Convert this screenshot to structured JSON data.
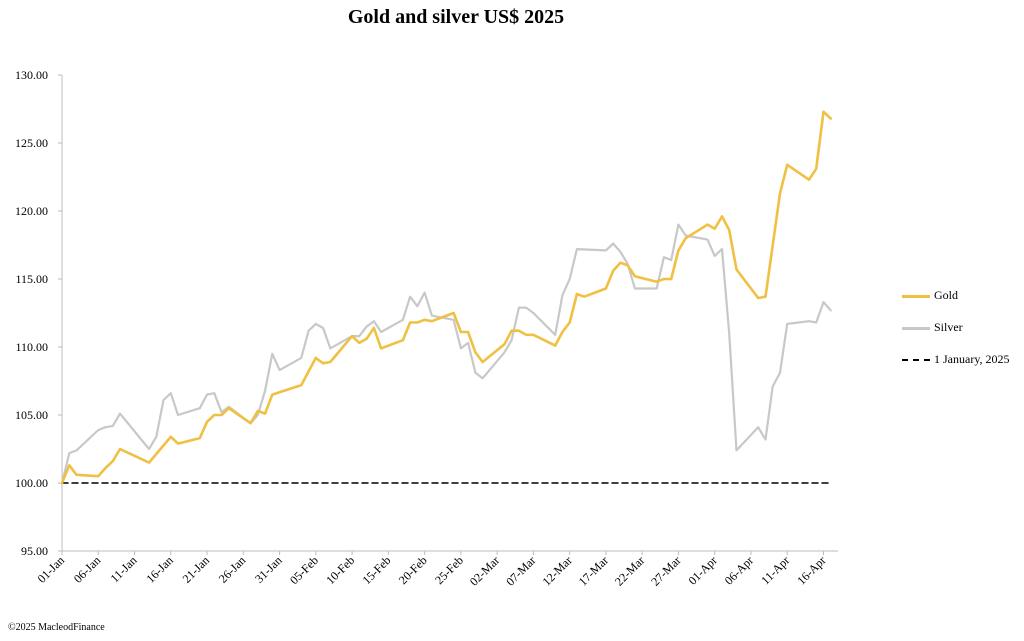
{
  "title": "Gold and silver  US$ 2025",
  "copyright": "©2025 MacleodFinance",
  "colors": {
    "gold": "#f0c043",
    "silver": "#c8c8c8",
    "baseline": "#000000"
  },
  "chart_data": {
    "type": "line",
    "title": "Gold and silver  US$ 2025",
    "xlabel": "",
    "ylabel": "",
    "ylim": [
      95,
      130
    ],
    "yticks": [
      "95.00",
      "100.00",
      "105.00",
      "110.00",
      "115.00",
      "120.00",
      "125.00",
      "130.00"
    ],
    "x_ticks": [
      "01-Jan",
      "06-Jan",
      "11-Jan",
      "16-Jan",
      "21-Jan",
      "26-Jan",
      "31-Jan",
      "05-Feb",
      "10-Feb",
      "15-Feb",
      "20-Feb",
      "25-Feb",
      "02-Mar",
      "07-Mar",
      "12-Mar",
      "17-Mar",
      "22-Mar",
      "27-Mar",
      "01-Apr",
      "06-Apr",
      "11-Apr",
      "16-Apr"
    ],
    "x_range_days": [
      0,
      107
    ],
    "grid": false,
    "legend_position": "right",
    "series": [
      {
        "name": "Gold",
        "color": "#f0c043",
        "points": [
          [
            0,
            100.0
          ],
          [
            1,
            101.3
          ],
          [
            2,
            100.6
          ],
          [
            5,
            100.5
          ],
          [
            6,
            101.1
          ],
          [
            7,
            101.6
          ],
          [
            8,
            102.5
          ],
          [
            12,
            101.5
          ],
          [
            15,
            103.4
          ],
          [
            16,
            102.9
          ],
          [
            19,
            103.3
          ],
          [
            20,
            104.5
          ],
          [
            21,
            105.0
          ],
          [
            22,
            105.0
          ],
          [
            23,
            105.5
          ],
          [
            26,
            104.4
          ],
          [
            27,
            105.3
          ],
          [
            28,
            105.1
          ],
          [
            29,
            106.5
          ],
          [
            33,
            107.2
          ],
          [
            35,
            109.2
          ],
          [
            36,
            108.8
          ],
          [
            37,
            108.9
          ],
          [
            40,
            110.8
          ],
          [
            41,
            110.3
          ],
          [
            42,
            110.6
          ],
          [
            43,
            111.4
          ],
          [
            44,
            109.9
          ],
          [
            47,
            110.5
          ],
          [
            48,
            111.8
          ],
          [
            49,
            111.8
          ],
          [
            50,
            112.0
          ],
          [
            51,
            111.9
          ],
          [
            54,
            112.5
          ],
          [
            55,
            111.1
          ],
          [
            56,
            111.1
          ],
          [
            57,
            109.6
          ],
          [
            58,
            108.9
          ],
          [
            61,
            110.2
          ],
          [
            62,
            111.2
          ],
          [
            63,
            111.2
          ],
          [
            64,
            110.9
          ],
          [
            65,
            110.9
          ],
          [
            68,
            110.1
          ],
          [
            69,
            111.1
          ],
          [
            70,
            111.8
          ],
          [
            71,
            113.9
          ],
          [
            72,
            113.7
          ],
          [
            75,
            114.3
          ],
          [
            76,
            115.6
          ],
          [
            77,
            116.2
          ],
          [
            78,
            116.0
          ],
          [
            79,
            115.2
          ],
          [
            82,
            114.8
          ],
          [
            83,
            115.0
          ],
          [
            84,
            115.0
          ],
          [
            85,
            117.1
          ],
          [
            86,
            118.0
          ],
          [
            89,
            119.0
          ],
          [
            90,
            118.7
          ],
          [
            91,
            119.6
          ],
          [
            92,
            118.6
          ],
          [
            93,
            115.7
          ],
          [
            96,
            113.6
          ],
          [
            97,
            113.7
          ],
          [
            99,
            121.3
          ],
          [
            100,
            123.4
          ],
          [
            103,
            122.3
          ],
          [
            104,
            123.1
          ],
          [
            105,
            127.3
          ],
          [
            106,
            126.8
          ]
        ]
      },
      {
        "name": "Silver",
        "color": "#c8c8c8",
        "points": [
          [
            0,
            100.0
          ],
          [
            1,
            102.2
          ],
          [
            2,
            102.4
          ],
          [
            5,
            103.9
          ],
          [
            6,
            104.1
          ],
          [
            7,
            104.2
          ],
          [
            8,
            105.1
          ],
          [
            12,
            102.5
          ],
          [
            13,
            103.4
          ],
          [
            14,
            106.1
          ],
          [
            15,
            106.6
          ],
          [
            16,
            105.0
          ],
          [
            19,
            105.5
          ],
          [
            20,
            106.5
          ],
          [
            21,
            106.6
          ],
          [
            22,
            105.2
          ],
          [
            23,
            105.6
          ],
          [
            26,
            104.4
          ],
          [
            27,
            105.0
          ],
          [
            28,
            106.8
          ],
          [
            29,
            109.5
          ],
          [
            30,
            108.3
          ],
          [
            33,
            109.2
          ],
          [
            34,
            111.2
          ],
          [
            35,
            111.7
          ],
          [
            36,
            111.4
          ],
          [
            37,
            109.9
          ],
          [
            40,
            110.8
          ],
          [
            41,
            110.8
          ],
          [
            42,
            111.5
          ],
          [
            43,
            111.9
          ],
          [
            44,
            111.1
          ],
          [
            47,
            112.0
          ],
          [
            48,
            113.7
          ],
          [
            49,
            113.0
          ],
          [
            50,
            114.0
          ],
          [
            51,
            112.3
          ],
          [
            54,
            112.0
          ],
          [
            55,
            109.9
          ],
          [
            56,
            110.3
          ],
          [
            57,
            108.1
          ],
          [
            58,
            107.7
          ],
          [
            61,
            109.6
          ],
          [
            62,
            110.5
          ],
          [
            63,
            112.9
          ],
          [
            64,
            112.9
          ],
          [
            65,
            112.5
          ],
          [
            68,
            110.9
          ],
          [
            69,
            113.8
          ],
          [
            70,
            115.0
          ],
          [
            71,
            117.2
          ],
          [
            75,
            117.1
          ],
          [
            76,
            117.6
          ],
          [
            77,
            117.0
          ],
          [
            78,
            116.1
          ],
          [
            79,
            114.3
          ],
          [
            82,
            114.3
          ],
          [
            83,
            116.6
          ],
          [
            84,
            116.4
          ],
          [
            85,
            119.0
          ],
          [
            86,
            118.2
          ],
          [
            89,
            117.9
          ],
          [
            90,
            116.7
          ],
          [
            91,
            117.2
          ],
          [
            92,
            111.0
          ],
          [
            93,
            102.4
          ],
          [
            96,
            104.1
          ],
          [
            97,
            103.2
          ],
          [
            98,
            107.1
          ],
          [
            99,
            108.1
          ],
          [
            100,
            111.7
          ],
          [
            103,
            111.9
          ],
          [
            104,
            111.8
          ],
          [
            105,
            113.3
          ],
          [
            106,
            112.7
          ]
        ]
      },
      {
        "name": "1 January, 2025",
        "color": "#000000",
        "dashed": true,
        "points": [
          [
            0,
            100.0
          ],
          [
            106,
            100.0
          ]
        ]
      }
    ]
  }
}
